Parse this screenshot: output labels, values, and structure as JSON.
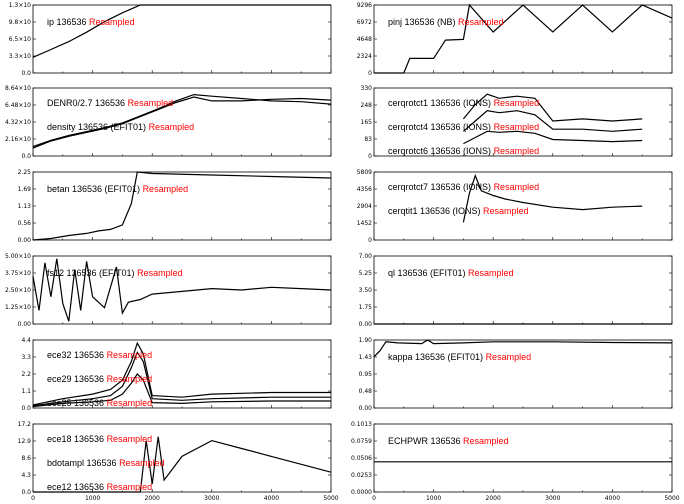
{
  "chart_data": [
    {
      "type": "line",
      "column": "left",
      "yticks": [
        "0.0",
        "3.3×10",
        "6.5×10",
        "9.8×10",
        "1.3×10"
      ],
      "ylim": [
        0,
        1.3
      ],
      "labels": [
        {
          "text": "ip  136536",
          "red": "Resampled"
        }
      ],
      "series": [
        {
          "x": [
            0,
            300,
            600,
            900,
            1200,
            1500,
            1800,
            2100,
            2400,
            2700,
            3000,
            5000
          ],
          "y": [
            0.3,
            0.45,
            0.6,
            0.78,
            0.98,
            1.15,
            1.3,
            1.3,
            1.3,
            1.3,
            1.3,
            1.3
          ]
        }
      ]
    },
    {
      "type": "line",
      "column": "left",
      "yticks": [
        "0.0",
        "2.16×10",
        "4.32×10",
        "6.48×10",
        "8.64×10"
      ],
      "ylim": [
        0,
        8.64
      ],
      "labels": [
        {
          "text": "DENR0/2.7  136536",
          "red": "Resampled"
        },
        {
          "text": "density  136536  (EFIT01)",
          "red": "Resampled"
        }
      ],
      "series": [
        {
          "x": [
            0,
            300,
            600,
            900,
            1200,
            1500,
            1800,
            2100,
            2400,
            2700,
            3000,
            3500,
            4000,
            4500,
            5000
          ],
          "y": [
            1.2,
            2.0,
            2.6,
            3.1,
            3.6,
            4.2,
            5.1,
            6.0,
            7.0,
            7.8,
            7.6,
            7.3,
            7.0,
            6.9,
            6.6
          ]
        },
        {
          "x": [
            0,
            300,
            600,
            900,
            1200,
            1500,
            1800,
            2100,
            2400,
            2700,
            3000,
            3500,
            4000,
            4500,
            5000
          ],
          "y": [
            1.0,
            1.9,
            2.5,
            3.0,
            3.5,
            4.1,
            5.0,
            5.9,
            6.8,
            7.5,
            7.0,
            7.0,
            7.2,
            7.3,
            7.1
          ]
        }
      ]
    },
    {
      "type": "line",
      "column": "left",
      "yticks": [
        "0.00",
        "0.56",
        "1.13",
        "1.69",
        "2.25"
      ],
      "ylim": [
        0,
        2.25
      ],
      "labels": [
        {
          "text": "betan  136536  (EFIT01)",
          "red": "Resampled"
        }
      ],
      "series": [
        {
          "x": [
            0,
            300,
            600,
            900,
            1100,
            1300,
            1500,
            1650,
            1750,
            2000,
            3000,
            4000,
            5000
          ],
          "y": [
            0.0,
            0.05,
            0.15,
            0.22,
            0.3,
            0.35,
            0.5,
            1.2,
            2.25,
            2.2,
            2.15,
            2.1,
            2.05
          ]
        }
      ]
    },
    {
      "type": "line",
      "column": "left",
      "yticks": [
        "0.00",
        "1.25×10",
        "2.50×10",
        "3.75×10",
        "5.00×10"
      ],
      "ylim": [
        0,
        5.0
      ],
      "labels": [
        {
          "text": "fs12   136536  (EFIT01)",
          "red": "Resampled"
        }
      ],
      "series": [
        {
          "x": [
            0,
            100,
            200,
            300,
            400,
            500,
            600,
            700,
            800,
            900,
            1000,
            1200,
            1400,
            1500,
            1600,
            1800,
            2000,
            2500,
            3000,
            3500,
            4000,
            4500,
            5000
          ],
          "y": [
            3.5,
            1.0,
            4.5,
            2.0,
            4.8,
            1.5,
            0.2,
            4.0,
            1.0,
            4.6,
            2.0,
            1.2,
            4.2,
            0.8,
            1.6,
            1.8,
            2.2,
            2.4,
            2.6,
            2.5,
            2.7,
            2.6,
            2.5
          ]
        }
      ]
    },
    {
      "type": "line",
      "column": "left",
      "yticks": [
        "0.0",
        "1.1",
        "2.2",
        "3.3",
        "4.4"
      ],
      "ylim": [
        0,
        4.4
      ],
      "labels": [
        {
          "text": "ece32  136536",
          "red": "Resampled"
        },
        {
          "text": "ece29  136536",
          "red": "Resampled"
        },
        {
          "text": "ece25  136536",
          "red": "Resampled"
        }
      ],
      "series": [
        {
          "x": [
            0,
            500,
            1000,
            1300,
            1500,
            1650,
            1750,
            1850,
            2000,
            2500,
            3000,
            4000,
            5000
          ],
          "y": [
            0.2,
            0.6,
            0.9,
            1.2,
            1.8,
            3.0,
            4.2,
            3.5,
            0.8,
            0.7,
            0.9,
            1.0,
            1.0
          ]
        },
        {
          "x": [
            0,
            500,
            1000,
            1300,
            1500,
            1650,
            1750,
            1850,
            2000,
            2500,
            3000,
            4000,
            5000
          ],
          "y": [
            0.15,
            0.4,
            0.6,
            0.8,
            1.4,
            2.6,
            3.6,
            3.0,
            0.6,
            0.5,
            0.6,
            0.7,
            0.7
          ]
        },
        {
          "x": [
            0,
            500,
            1000,
            1300,
            1500,
            1650,
            1750,
            1850,
            2000,
            2500,
            3000,
            4000,
            5000
          ],
          "y": [
            0.1,
            0.3,
            0.4,
            0.5,
            0.9,
            1.6,
            2.2,
            1.8,
            0.35,
            0.3,
            0.4,
            0.45,
            0.45
          ]
        }
      ]
    },
    {
      "type": "line",
      "column": "left",
      "yticks": [
        "0.0",
        "4.3",
        "8.6",
        "12.9",
        "17.2"
      ],
      "ylim": [
        0,
        17.2
      ],
      "labels": [
        {
          "text": "ece18  136536",
          "red": "Resampled"
        },
        {
          "text": "bdotampl  136536",
          "red": "Resampled"
        },
        {
          "text": "ece12  136536",
          "red": "Resampled"
        }
      ],
      "series": [
        {
          "x": [
            0,
            1500,
            1700,
            1800,
            1900,
            2000,
            2100,
            2200,
            2500,
            3000,
            3500,
            4000,
            4500,
            5000
          ],
          "y": [
            0,
            0,
            0,
            0,
            13,
            2,
            14,
            3,
            9,
            13,
            11,
            9,
            7,
            5
          ]
        }
      ]
    },
    {
      "type": "line",
      "column": "right",
      "yticks": [
        "0",
        "2324",
        "4648",
        "6972",
        "9296"
      ],
      "ylim": [
        0,
        9296
      ],
      "labels": [
        {
          "text": "pinj  136536  (NB)",
          "red": "Resampled"
        }
      ],
      "series": [
        {
          "x": [
            0,
            500,
            600,
            1000,
            1200,
            1500,
            1600,
            2000,
            2500,
            3000,
            3500,
            4000,
            4500,
            5000
          ],
          "y": [
            0,
            0,
            2000,
            2000,
            4500,
            4600,
            9296,
            5600,
            9296,
            5600,
            9296,
            5600,
            9296,
            7500
          ]
        }
      ]
    },
    {
      "type": "line",
      "column": "right",
      "yticks": [
        "0",
        "83",
        "165",
        "248",
        "330"
      ],
      "ylim": [
        0,
        330
      ],
      "labels": [
        {
          "text": "cerqrotct1  136536  (IONS)",
          "red": "Resampled"
        },
        {
          "text": "cerqrotct4  136536  (IONS)",
          "red": "Resampled"
        },
        {
          "text": "cerqrotct6  136536  (IONS)",
          "red": "Resampled"
        }
      ],
      "series": [
        {
          "x": [
            1500,
            1700,
            1900,
            2100,
            2400,
            2700,
            3000,
            3500,
            4000,
            4500
          ],
          "y": [
            180,
            250,
            300,
            280,
            290,
            280,
            170,
            180,
            170,
            180
          ]
        },
        {
          "x": [
            1500,
            1700,
            1900,
            2100,
            2400,
            2700,
            3000,
            3500,
            4000,
            4500
          ],
          "y": [
            120,
            170,
            220,
            210,
            220,
            200,
            130,
            130,
            120,
            130
          ]
        },
        {
          "x": [
            1500,
            1700,
            1900,
            2100,
            2400,
            2700,
            3000,
            3500,
            4000,
            4500
          ],
          "y": [
            60,
            90,
            120,
            115,
            120,
            110,
            80,
            75,
            70,
            75
          ]
        }
      ]
    },
    {
      "type": "line",
      "column": "right",
      "yticks": [
        "0",
        "1452",
        "2904",
        "4356",
        "5809"
      ],
      "ylim": [
        0,
        5809
      ],
      "labels": [
        {
          "text": "cerqrotct7  136536  (IONS)",
          "red": "Resampled"
        },
        {
          "text": "cerqtit1  136536  (IONS)",
          "red": "Resampled"
        }
      ],
      "series": [
        {
          "x": [
            1500,
            1600,
            1700,
            1800,
            2000,
            2200,
            2500,
            3000,
            3500,
            4000,
            4500
          ],
          "y": [
            1500,
            4000,
            5500,
            4200,
            3800,
            3500,
            3200,
            2800,
            2600,
            2800,
            2900
          ]
        }
      ]
    },
    {
      "type": "line",
      "column": "right",
      "yticks": [
        "0.00",
        "1.75",
        "3.50",
        "5.25",
        "7.00"
      ],
      "ylim": [
        0,
        7.0
      ],
      "labels": [
        {
          "text": "ql  136536  (EFIT01)",
          "red": "Resampled"
        }
      ],
      "series": [
        {
          "x": [
            0,
            5000
          ],
          "y": [
            0,
            0
          ]
        }
      ]
    },
    {
      "type": "line",
      "column": "right",
      "yticks": [
        "0.00",
        "0.48",
        "0.95",
        "1.43",
        "1.90"
      ],
      "ylim": [
        0,
        1.9
      ],
      "labels": [
        {
          "text": "kappa  136536  (EFIT01)",
          "red": "Resampled"
        }
      ],
      "series": [
        {
          "x": [
            0,
            100,
            200,
            400,
            800,
            900,
            1000,
            1500,
            2000,
            3000,
            4000,
            5000
          ],
          "y": [
            1.43,
            1.6,
            1.85,
            1.82,
            1.8,
            1.9,
            1.8,
            1.82,
            1.85,
            1.85,
            1.83,
            1.82
          ]
        }
      ]
    },
    {
      "type": "line",
      "column": "right",
      "yticks": [
        "0.0000",
        "0.0253",
        "0.0506",
        "0.0759",
        "0.1013"
      ],
      "ylim": [
        0,
        0.1013
      ],
      "labels": [
        {
          "text": "ECHPWR  136536",
          "red": "Resampled"
        }
      ],
      "series": [
        {
          "x": [
            0,
            5000
          ],
          "y": [
            0.045,
            0.045
          ]
        }
      ]
    }
  ],
  "xticks": [
    "0",
    "1000",
    "2000",
    "3000",
    "4000",
    "5000"
  ],
  "xlim": [
    0,
    5000
  ]
}
